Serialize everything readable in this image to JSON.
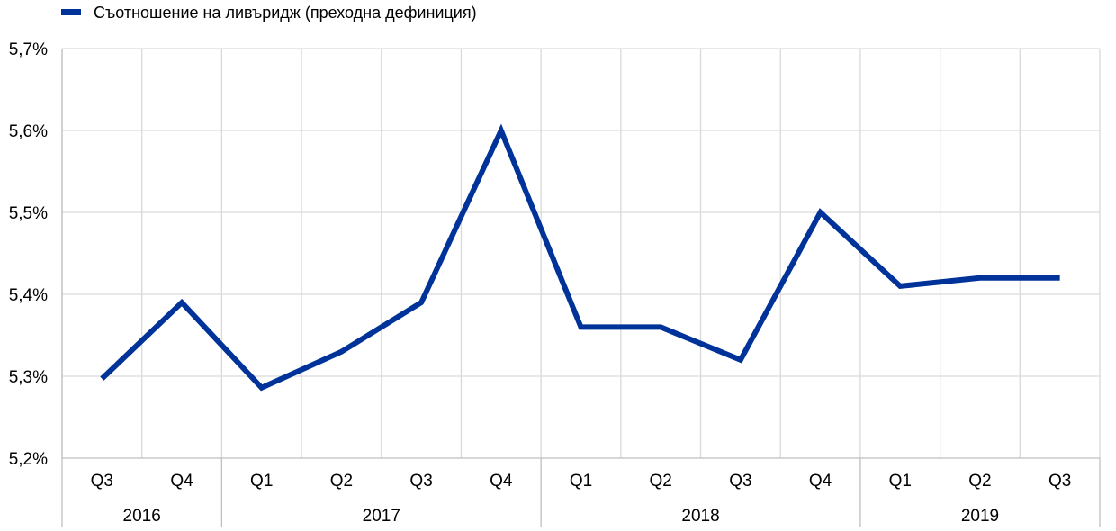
{
  "chart_data": {
    "type": "line",
    "title": "",
    "xlabel": "",
    "ylabel": "",
    "categories": [
      "Q3",
      "Q4",
      "Q1",
      "Q2",
      "Q3",
      "Q4",
      "Q1",
      "Q2",
      "Q3",
      "Q4",
      "Q1",
      "Q2",
      "Q3"
    ],
    "year_groups": [
      {
        "label": "2016",
        "count": 2
      },
      {
        "label": "2017",
        "count": 4
      },
      {
        "label": "2018",
        "count": 4
      },
      {
        "label": "2019",
        "count": 3
      }
    ],
    "series": [
      {
        "name": "Съотношение на ливъридж (преходна дефиниция)",
        "color": "#003399",
        "values": [
          5.297,
          5.39,
          5.286,
          5.33,
          5.39,
          5.6,
          5.36,
          5.36,
          5.32,
          5.5,
          5.41,
          5.42,
          5.42
        ]
      }
    ],
    "ylim": [
      5.2,
      5.7
    ],
    "y_ticks": [
      "5,2%",
      "5,3%",
      "5,4%",
      "5,5%",
      "5,6%",
      "5,7%"
    ],
    "grid": true,
    "legend_position": "top-left"
  }
}
